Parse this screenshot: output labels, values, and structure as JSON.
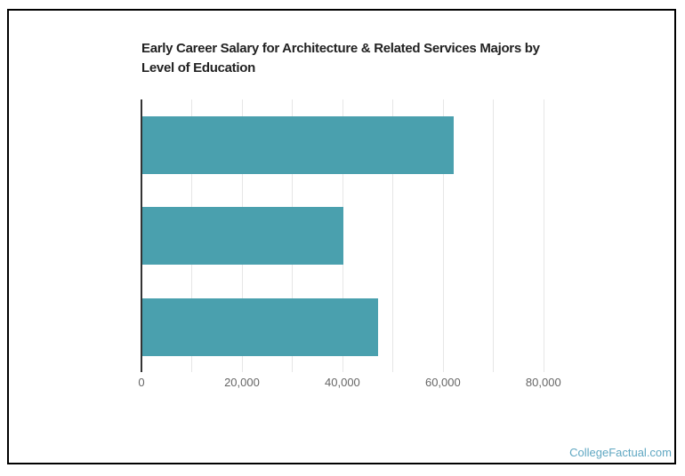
{
  "page": {
    "watermark": "CollegeFactual.com",
    "background": "#ffffff"
  },
  "colors": {
    "bar": "#4aa0ae",
    "axis": "#333333",
    "grid": "#e6e6e6",
    "tick": "#666666",
    "title": "#222222",
    "frame": "#000000",
    "watermark": "#5fa7c2"
  },
  "chart": {
    "title_lines": [
      "Early Career Salary for Architecture & Related Services Majors by",
      "Level of Education"
    ]
  },
  "chart_data": {
    "type": "bar",
    "orientation": "horizontal",
    "title": "Early Career Salary for Architecture & Related Services Majors by Level of Education",
    "categories": [
      "",
      "",
      ""
    ],
    "values": [
      62000,
      40000,
      47000
    ],
    "xlabel": "",
    "ylabel": "",
    "xlim": [
      0,
      88000
    ],
    "xticks": [
      0,
      20000,
      40000,
      60000,
      80000
    ],
    "xtick_labels": [
      "0",
      "20,000",
      "40,000",
      "60,000",
      "80,000"
    ],
    "gridline_interval": 10000,
    "grid": true,
    "legend": false,
    "bar_color": "#4aa0ae"
  }
}
